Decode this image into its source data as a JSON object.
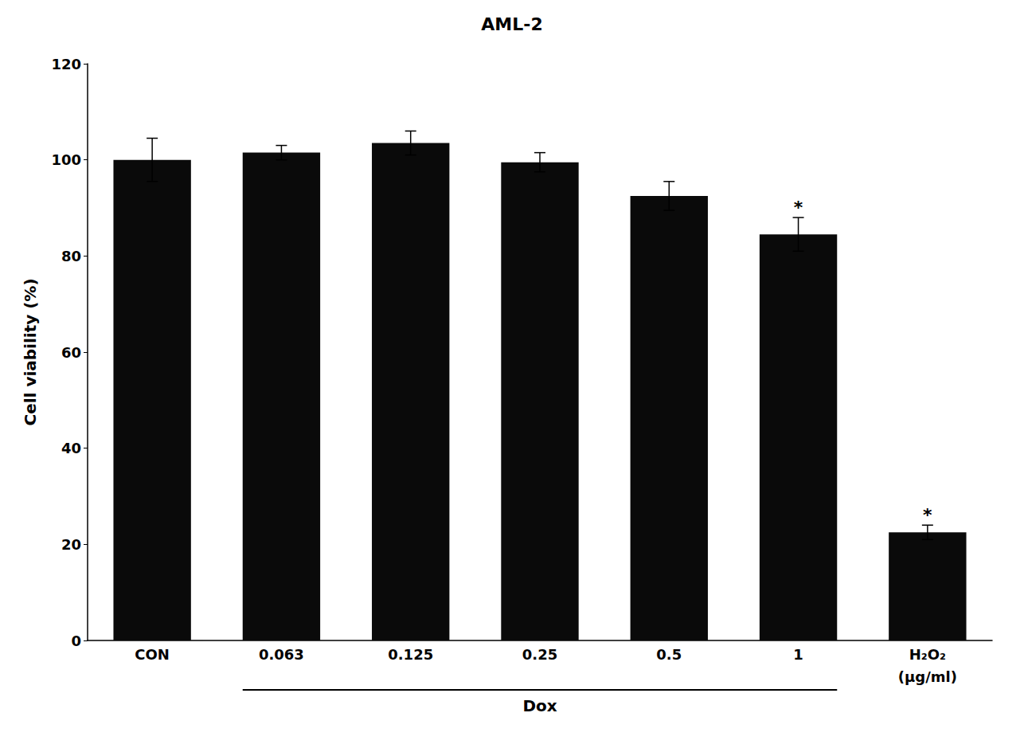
{
  "chart_data": {
    "type": "bar",
    "title": "AML-2",
    "y_label": "Cell viability (%)",
    "categories": [
      "CON",
      "0.063",
      "0.125",
      "0.25",
      "0.5",
      "1",
      "H₂O₂"
    ],
    "values": [
      100.0,
      101.5,
      103.5,
      99.5,
      92.5,
      84.5,
      22.5
    ],
    "errors": [
      4.5,
      1.5,
      2.5,
      2.0,
      3.0,
      3.5,
      1.5
    ],
    "color": "#0a0a0a",
    "ylim": [
      0,
      120
    ],
    "yticks": [
      0,
      20,
      40,
      60,
      80,
      100,
      120
    ],
    "grid": false,
    "significance_markers": [
      {
        "category": "1",
        "text": "*"
      },
      {
        "category": "H₂O₂",
        "text": "*"
      }
    ],
    "annotations": [
      {
        "text": "Dox",
        "from": "0.063",
        "to": "1"
      },
      {
        "text": "(μg/ml)",
        "category": "H₂O₂"
      }
    ]
  }
}
